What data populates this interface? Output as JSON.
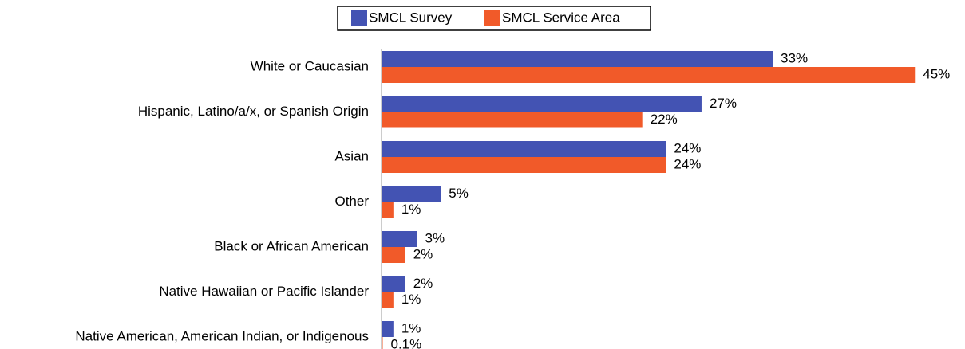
{
  "chart_data": {
    "type": "bar",
    "orientation": "horizontal",
    "categories": [
      "White or Caucasian",
      "Hispanic, Latino/a/x, or Spanish Origin",
      "Asian",
      "Other",
      "Black or African American",
      "Native Hawaiian or Pacific Islander",
      "Native American, American Indian, or Indigenous"
    ],
    "series": [
      {
        "name": "SMCL Survey",
        "color": "#4353b3",
        "values": [
          33,
          27,
          24,
          5,
          3,
          2,
          1
        ],
        "value_labels": [
          "33%",
          "27%",
          "24%",
          "5%",
          "3%",
          "2%",
          "1%"
        ]
      },
      {
        "name": "SMCL Service Area",
        "color": "#f15a29",
        "values": [
          45,
          22,
          24,
          1,
          2,
          1,
          0.1
        ],
        "value_labels": [
          "45%",
          "22%",
          "24%",
          "1%",
          "2%",
          "1%",
          "0.1%"
        ]
      }
    ],
    "legend": "top"
  }
}
